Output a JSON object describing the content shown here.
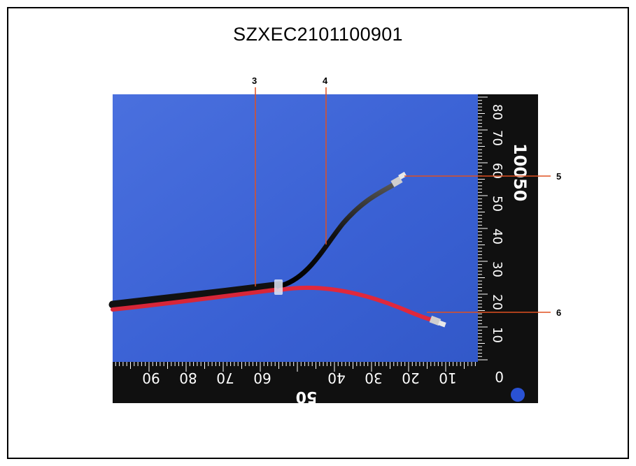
{
  "document": {
    "title": "SZXEC2101100901"
  },
  "callouts": [
    {
      "label": "3"
    },
    {
      "label": "4"
    },
    {
      "label": "5"
    },
    {
      "label": "6"
    }
  ],
  "ruler": {
    "bottom_ticks": [
      "10",
      "20",
      "30",
      "40",
      "60",
      "70",
      "80",
      "90"
    ],
    "right_ticks": [
      "10",
      "20",
      "30",
      "40",
      "50",
      "60",
      "70",
      "80"
    ],
    "right_big": [
      "100",
      "50"
    ],
    "bottom_big": [
      "50"
    ]
  },
  "colors": {
    "background": "#3b63d6",
    "ruler": "#111111",
    "red_wire": "#e0283c",
    "black_wire": "#1a1a1a",
    "callout_line": "#e05020"
  }
}
